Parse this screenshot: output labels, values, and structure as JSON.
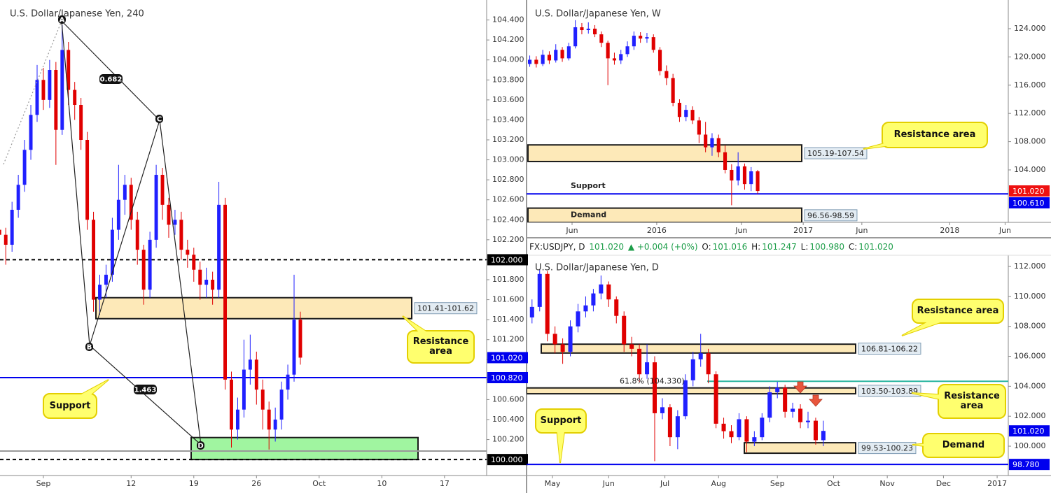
{
  "chart_data": [
    {
      "type": "candlestick",
      "title": "U.S. Dollar/Japanese Yen, 240",
      "xlim": [
        -3.46,
        35.36
      ],
      "ylim": [
        99.84,
        104.6
      ],
      "xticks": [
        {
          "value": 0,
          "label": "Sep"
        },
        {
          "value": 7,
          "label": "12"
        },
        {
          "value": 12,
          "label": "19"
        },
        {
          "value": 17,
          "label": "26"
        },
        {
          "value": 22,
          "label": "Oct"
        },
        {
          "value": 27,
          "label": "10"
        },
        {
          "value": 32,
          "label": "17"
        }
      ],
      "yticks": [
        {
          "value": 100,
          "label": "100.000"
        },
        {
          "value": 100.2,
          "label": "100.200"
        },
        {
          "value": 100.4,
          "label": "100.400"
        },
        {
          "value": 100.6,
          "label": "100.600"
        },
        {
          "value": 100.8,
          "label": "100.800"
        },
        {
          "value": 101,
          "label": "101.000"
        },
        {
          "value": 101.2,
          "label": "101.200"
        },
        {
          "value": 101.4,
          "label": "101.400"
        },
        {
          "value": 101.6,
          "label": "101.600"
        },
        {
          "value": 101.8,
          "label": "101.800"
        },
        {
          "value": 102,
          "label": "102.000"
        },
        {
          "value": 102.2,
          "label": "102.200"
        },
        {
          "value": 102.4,
          "label": "102.400"
        },
        {
          "value": 102.6,
          "label": "102.600"
        },
        {
          "value": 102.8,
          "label": "102.800"
        },
        {
          "value": 103,
          "label": "103.000"
        },
        {
          "value": 103.2,
          "label": "103.200"
        },
        {
          "value": 103.4,
          "label": "103.400"
        },
        {
          "value": 103.6,
          "label": "103.600"
        },
        {
          "value": 103.8,
          "label": "103.800"
        },
        {
          "value": 104,
          "label": "104.000"
        },
        {
          "value": 104.2,
          "label": "104.200"
        },
        {
          "value": 104.4,
          "label": "104.400"
        }
      ],
      "x": [
        -3.5,
        -3,
        -2.5,
        -2,
        -1.5,
        -1,
        -0.5,
        0,
        0.5,
        1,
        1.5,
        2,
        2.5,
        3,
        3.5,
        4,
        4.5,
        5,
        5.5,
        6,
        6.5,
        7,
        7.5,
        8,
        8.5,
        9,
        9.5,
        10,
        10.5,
        11,
        11.5,
        12,
        12.5,
        13,
        13.5,
        14,
        14.5,
        15,
        15.5,
        16,
        16.5,
        17,
        17.5,
        18,
        18.5,
        19,
        19.5,
        20,
        20.5
      ],
      "open": [
        102.3,
        102.25,
        102.15,
        102.5,
        102.75,
        103.1,
        103.45,
        103.8,
        103.6,
        103.9,
        103.3,
        104.1,
        103.7,
        103.55,
        103.2,
        102.4,
        101.6,
        101.75,
        101.85,
        102.3,
        102.6,
        102.75,
        102.4,
        102.1,
        101.7,
        102.2,
        102.85,
        102.55,
        102.35,
        102.4,
        102.1,
        102.05,
        101.9,
        101.75,
        101.8,
        101.7,
        102.55,
        100.8,
        100.3,
        100.5,
        100.9,
        101.0,
        100.7,
        100.5,
        100.3,
        100.4,
        100.7,
        100.85,
        101.4
      ],
      "high": [
        102.38,
        102.32,
        102.58,
        102.85,
        103.2,
        103.55,
        103.95,
        103.92,
        104.0,
        103.98,
        104.35,
        104.18,
        103.78,
        103.62,
        103.28,
        102.48,
        101.85,
        101.95,
        102.42,
        102.95,
        102.85,
        102.82,
        102.48,
        102.15,
        102.28,
        102.95,
        102.92,
        102.62,
        102.5,
        102.48,
        102.2,
        102.12,
        101.98,
        101.92,
        101.88,
        102.78,
        102.62,
        100.88,
        100.62,
        101.2,
        101.25,
        101.08,
        100.8,
        100.58,
        100.52,
        100.78,
        100.95,
        101.85,
        101.48
      ],
      "low": [
        102.12,
        101.95,
        102.08,
        102.42,
        102.68,
        103.0,
        103.38,
        103.5,
        103.52,
        102.95,
        103.25,
        103.55,
        103.4,
        103.1,
        102.3,
        101.48,
        101.45,
        101.62,
        101.78,
        102.2,
        102.45,
        102.3,
        101.95,
        101.55,
        101.62,
        102.12,
        102.4,
        102.22,
        102.25,
        102.0,
        101.92,
        101.78,
        101.6,
        101.62,
        101.55,
        101.62,
        100.7,
        100.12,
        100.2,
        100.42,
        100.75,
        100.55,
        100.3,
        100.1,
        100.18,
        100.3,
        100.6,
        100.78,
        100.95
      ],
      "close": [
        102.25,
        102.15,
        102.5,
        102.75,
        103.1,
        103.45,
        103.8,
        103.6,
        103.9,
        103.3,
        104.1,
        103.7,
        103.55,
        103.2,
        102.4,
        101.6,
        101.75,
        101.85,
        102.3,
        102.6,
        102.75,
        102.4,
        102.1,
        101.7,
        102.2,
        102.85,
        102.55,
        102.35,
        102.4,
        102.1,
        102.05,
        101.9,
        101.75,
        101.8,
        101.7,
        102.55,
        100.8,
        100.3,
        100.5,
        100.9,
        101.0,
        100.7,
        100.5,
        100.3,
        100.4,
        100.7,
        100.85,
        101.4,
        101.02
      ],
      "up_color": "#2020ff",
      "down_color": "#e00000",
      "zones": [
        {
          "label": "101.41-101.62",
          "low": 101.41,
          "high": 101.62,
          "color": "#fde9b8"
        },
        {
          "low": 100.0,
          "high": 100.22,
          "color": "#a0f5a0"
        }
      ],
      "lines": [
        {
          "value": 102,
          "label": "102.000",
          "color": "#000000",
          "dash": true
        },
        {
          "value": 100.82,
          "label": "100.820",
          "color": "#0000ee"
        },
        {
          "value": 100.085,
          "color": "#999999"
        },
        {
          "value": 100,
          "label": "100.000",
          "color": "#000000",
          "dash": true
        }
      ],
      "price_labels": [
        {
          "value": 101.02,
          "label": "101.020",
          "color": "#0000ee"
        }
      ],
      "callouts": [
        "Resistance area",
        "Support"
      ],
      "pattern": {
        "points": [
          "A",
          "B",
          "C",
          "D"
        ],
        "ratios": [
          0.682,
          1.463
        ]
      }
    },
    {
      "type": "candlestick",
      "title": "U.S. Dollar/Japanese Yen, W",
      "xlim": [
        -13.98,
        133.98
      ],
      "ylim": [
        96.57,
        128.06
      ],
      "xticks": [
        {
          "value": 0,
          "label": "Jun"
        },
        {
          "value": 26,
          "label": "2016"
        },
        {
          "value": 52,
          "label": "Jun"
        },
        {
          "value": 71,
          "label": "2017"
        },
        {
          "value": 89,
          "label": "Jun"
        },
        {
          "value": 116,
          "label": "2018"
        },
        {
          "value": 133,
          "label": "Jun"
        }
      ],
      "yticks": [
        {
          "value": 104,
          "label": "104.000"
        },
        {
          "value": 108,
          "label": "108.000"
        },
        {
          "value": 112,
          "label": "112.000"
        },
        {
          "value": 116,
          "label": "116.000"
        },
        {
          "value": 120,
          "label": "120.000"
        },
        {
          "value": 124,
          "label": "124.000"
        }
      ],
      "x": [
        -13,
        -11,
        -9,
        -7,
        -5,
        -3,
        -1,
        1,
        3,
        5,
        7,
        9,
        11,
        13,
        15,
        17,
        19,
        21,
        23,
        25,
        27,
        29,
        31,
        33,
        35,
        37,
        39,
        41,
        43,
        45,
        47,
        49,
        51,
        53,
        55,
        57
      ],
      "open": [
        119.0,
        119.6,
        119.0,
        120.3,
        119.5,
        121.0,
        119.8,
        121.5,
        124.2,
        123.8,
        124.0,
        123.2,
        122.0,
        119.8,
        119.5,
        120.4,
        121.5,
        123.0,
        122.6,
        122.8,
        121.0,
        118.0,
        117.0,
        113.5,
        111.5,
        112.5,
        111.0,
        109.0,
        107.2,
        108.5,
        106.5,
        104.0,
        102.5,
        104.5,
        102.0,
        103.8
      ],
      "high": [
        120.2,
        120.1,
        121.0,
        120.8,
        121.8,
        121.4,
        122.0,
        125.2,
        124.8,
        124.9,
        124.5,
        123.6,
        122.3,
        120.6,
        121.0,
        122.2,
        123.6,
        123.5,
        123.4,
        123.2,
        121.4,
        118.8,
        117.6,
        114.0,
        113.2,
        113.0,
        111.5,
        110.8,
        109.2,
        109.0,
        107.5,
        104.8,
        106.5,
        104.9,
        104.4,
        104.0
      ],
      "low": [
        118.6,
        118.5,
        118.7,
        119.0,
        119.2,
        119.3,
        119.5,
        121.2,
        123.2,
        123.3,
        122.8,
        121.4,
        116.0,
        118.9,
        119.0,
        120.0,
        121.0,
        122.0,
        122.0,
        120.6,
        117.4,
        116.0,
        113.0,
        110.8,
        110.9,
        110.5,
        107.8,
        106.5,
        106.0,
        105.8,
        103.5,
        99.0,
        101.8,
        101.2,
        101.0,
        100.6
      ],
      "close": [
        119.6,
        119.0,
        120.3,
        119.5,
        121.0,
        119.8,
        121.5,
        124.2,
        123.8,
        124.0,
        123.2,
        122.0,
        119.8,
        119.5,
        120.4,
        121.5,
        123.0,
        122.6,
        122.8,
        121.0,
        118.0,
        117.0,
        113.5,
        111.5,
        112.5,
        111.0,
        109.0,
        107.2,
        108.5,
        106.5,
        104.0,
        102.5,
        104.5,
        102.0,
        103.8,
        101.02
      ],
      "up_color": "#2020ff",
      "down_color": "#e00000",
      "zones": [
        {
          "label": "105.19-107.54",
          "low": 105.19,
          "high": 107.54,
          "color": "#fde9b8"
        },
        {
          "label": "96.56-98.59",
          "low": 96.56,
          "high": 98.59,
          "color": "#fde9b8",
          "text": "Demand"
        }
      ],
      "lines": [
        {
          "value": 100.61,
          "label": "100.610",
          "color": "#0000ee",
          "text": "Support"
        }
      ],
      "price_labels": [
        {
          "value": 101.02,
          "label": "101.020",
          "color": "#ee1111"
        }
      ],
      "callouts": [
        "Resistance area"
      ]
    },
    {
      "type": "candlestick",
      "title": "U.S. Dollar/Japanese Yen, D",
      "header": {
        "symbol": "FX:USDJPY, D",
        "last": "101.020",
        "change": "▲ +0.004 (+0%)",
        "ohlc": [
          [
            "O:",
            "101.016"
          ],
          [
            "H:",
            "101.247"
          ],
          [
            "L:",
            "100.980"
          ],
          [
            "C:",
            "101.020"
          ]
        ]
      },
      "xlim": [
        -10.14,
        178.36
      ],
      "ylim": [
        98.04,
        112.75
      ],
      "xticks": [
        {
          "value": 0,
          "label": "May"
        },
        {
          "value": 22,
          "label": "Jun"
        },
        {
          "value": 44,
          "label": "Jul"
        },
        {
          "value": 65,
          "label": "Aug"
        },
        {
          "value": 88,
          "label": "Sep"
        },
        {
          "value": 110,
          "label": "Oct"
        },
        {
          "value": 131,
          "label": "Nov"
        },
        {
          "value": 153,
          "label": "Dec"
        },
        {
          "value": 174,
          "label": "2017"
        }
      ],
      "yticks": [
        {
          "value": 100,
          "label": "100.000"
        },
        {
          "value": 102,
          "label": "102.000"
        },
        {
          "value": 104,
          "label": "104.000"
        },
        {
          "value": 106,
          "label": "106.000"
        },
        {
          "value": 108,
          "label": "108.000"
        },
        {
          "value": 110,
          "label": "110.000"
        },
        {
          "value": 112,
          "label": "112.000"
        }
      ],
      "x": [
        -8,
        -5,
        -2,
        1,
        4,
        7,
        10,
        13,
        16,
        19,
        22,
        25,
        28,
        31,
        34,
        37,
        40,
        43,
        46,
        49,
        52,
        55,
        58,
        61,
        64,
        67,
        70,
        73,
        76,
        79,
        82,
        85,
        88,
        91,
        94,
        97,
        100,
        103,
        106
      ],
      "open": [
        108.6,
        109.3,
        111.5,
        107.5,
        106.8,
        106.3,
        108.0,
        109.0,
        109.4,
        110.2,
        110.8,
        109.8,
        108.7,
        106.8,
        106.5,
        104.8,
        105.6,
        102.2,
        102.6,
        100.6,
        102.0,
        104.4,
        105.8,
        106.2,
        104.8,
        101.5,
        101.0,
        100.6,
        101.8,
        100.3,
        100.6,
        101.9,
        103.6,
        103.9,
        102.3,
        102.5,
        101.6,
        101.7,
        100.4
      ],
      "high": [
        109.8,
        111.8,
        111.7,
        108.0,
        107.2,
        108.4,
        109.5,
        110.0,
        110.5,
        111.4,
        111.0,
        110.0,
        109.0,
        107.3,
        106.8,
        106.8,
        106.0,
        103.2,
        102.8,
        102.4,
        104.8,
        106.3,
        107.5,
        106.5,
        105.0,
        101.9,
        101.4,
        102.2,
        102.0,
        101.0,
        102.2,
        104.0,
        104.3,
        104.1,
        102.9,
        102.8,
        102.3,
        101.9,
        101.7
      ],
      "low": [
        108.2,
        109.0,
        107.0,
        106.2,
        105.5,
        106.0,
        107.6,
        108.6,
        109.0,
        109.8,
        109.3,
        108.2,
        106.3,
        106.0,
        104.3,
        104.5,
        99.0,
        101.8,
        100.0,
        99.8,
        101.8,
        104.0,
        105.3,
        104.2,
        101.2,
        100.5,
        100.2,
        100.4,
        99.6,
        100.0,
        100.4,
        101.6,
        103.2,
        101.9,
        101.9,
        101.2,
        101.2,
        100.1,
        100.0
      ],
      "close": [
        109.3,
        111.5,
        107.5,
        106.8,
        106.3,
        108.0,
        109.0,
        109.4,
        110.2,
        110.8,
        109.8,
        108.7,
        106.8,
        106.5,
        104.8,
        105.6,
        102.2,
        102.6,
        100.6,
        102.0,
        104.4,
        105.8,
        106.2,
        104.8,
        101.5,
        101.0,
        100.6,
        101.8,
        100.3,
        100.6,
        101.9,
        103.6,
        103.9,
        102.3,
        102.5,
        101.6,
        101.7,
        100.4,
        101.02
      ],
      "up_color": "#2020ff",
      "down_color": "#e00000",
      "zones": [
        {
          "label": "106.81-106.22",
          "low": 106.22,
          "high": 106.81,
          "color": "#fde9b8"
        },
        {
          "label": "103.50-103.89",
          "low": 103.5,
          "high": 103.89,
          "color": "#fde9b8"
        },
        {
          "label": "99.53-100.23",
          "low": 99.53,
          "high": 100.23,
          "color": "#fde9b8"
        }
      ],
      "lines": [
        {
          "value": 104.33,
          "color": "#2bb5a0",
          "text": "61.8% (104.330)"
        },
        {
          "value": 98.78,
          "label": "98.780",
          "color": "#0000ee"
        }
      ],
      "price_labels": [
        {
          "value": 101.02,
          "label": "101.020",
          "color": "#0000ee"
        }
      ],
      "callouts": [
        "Resistance area",
        "Resistance area",
        "Demand",
        "Support"
      ]
    }
  ]
}
